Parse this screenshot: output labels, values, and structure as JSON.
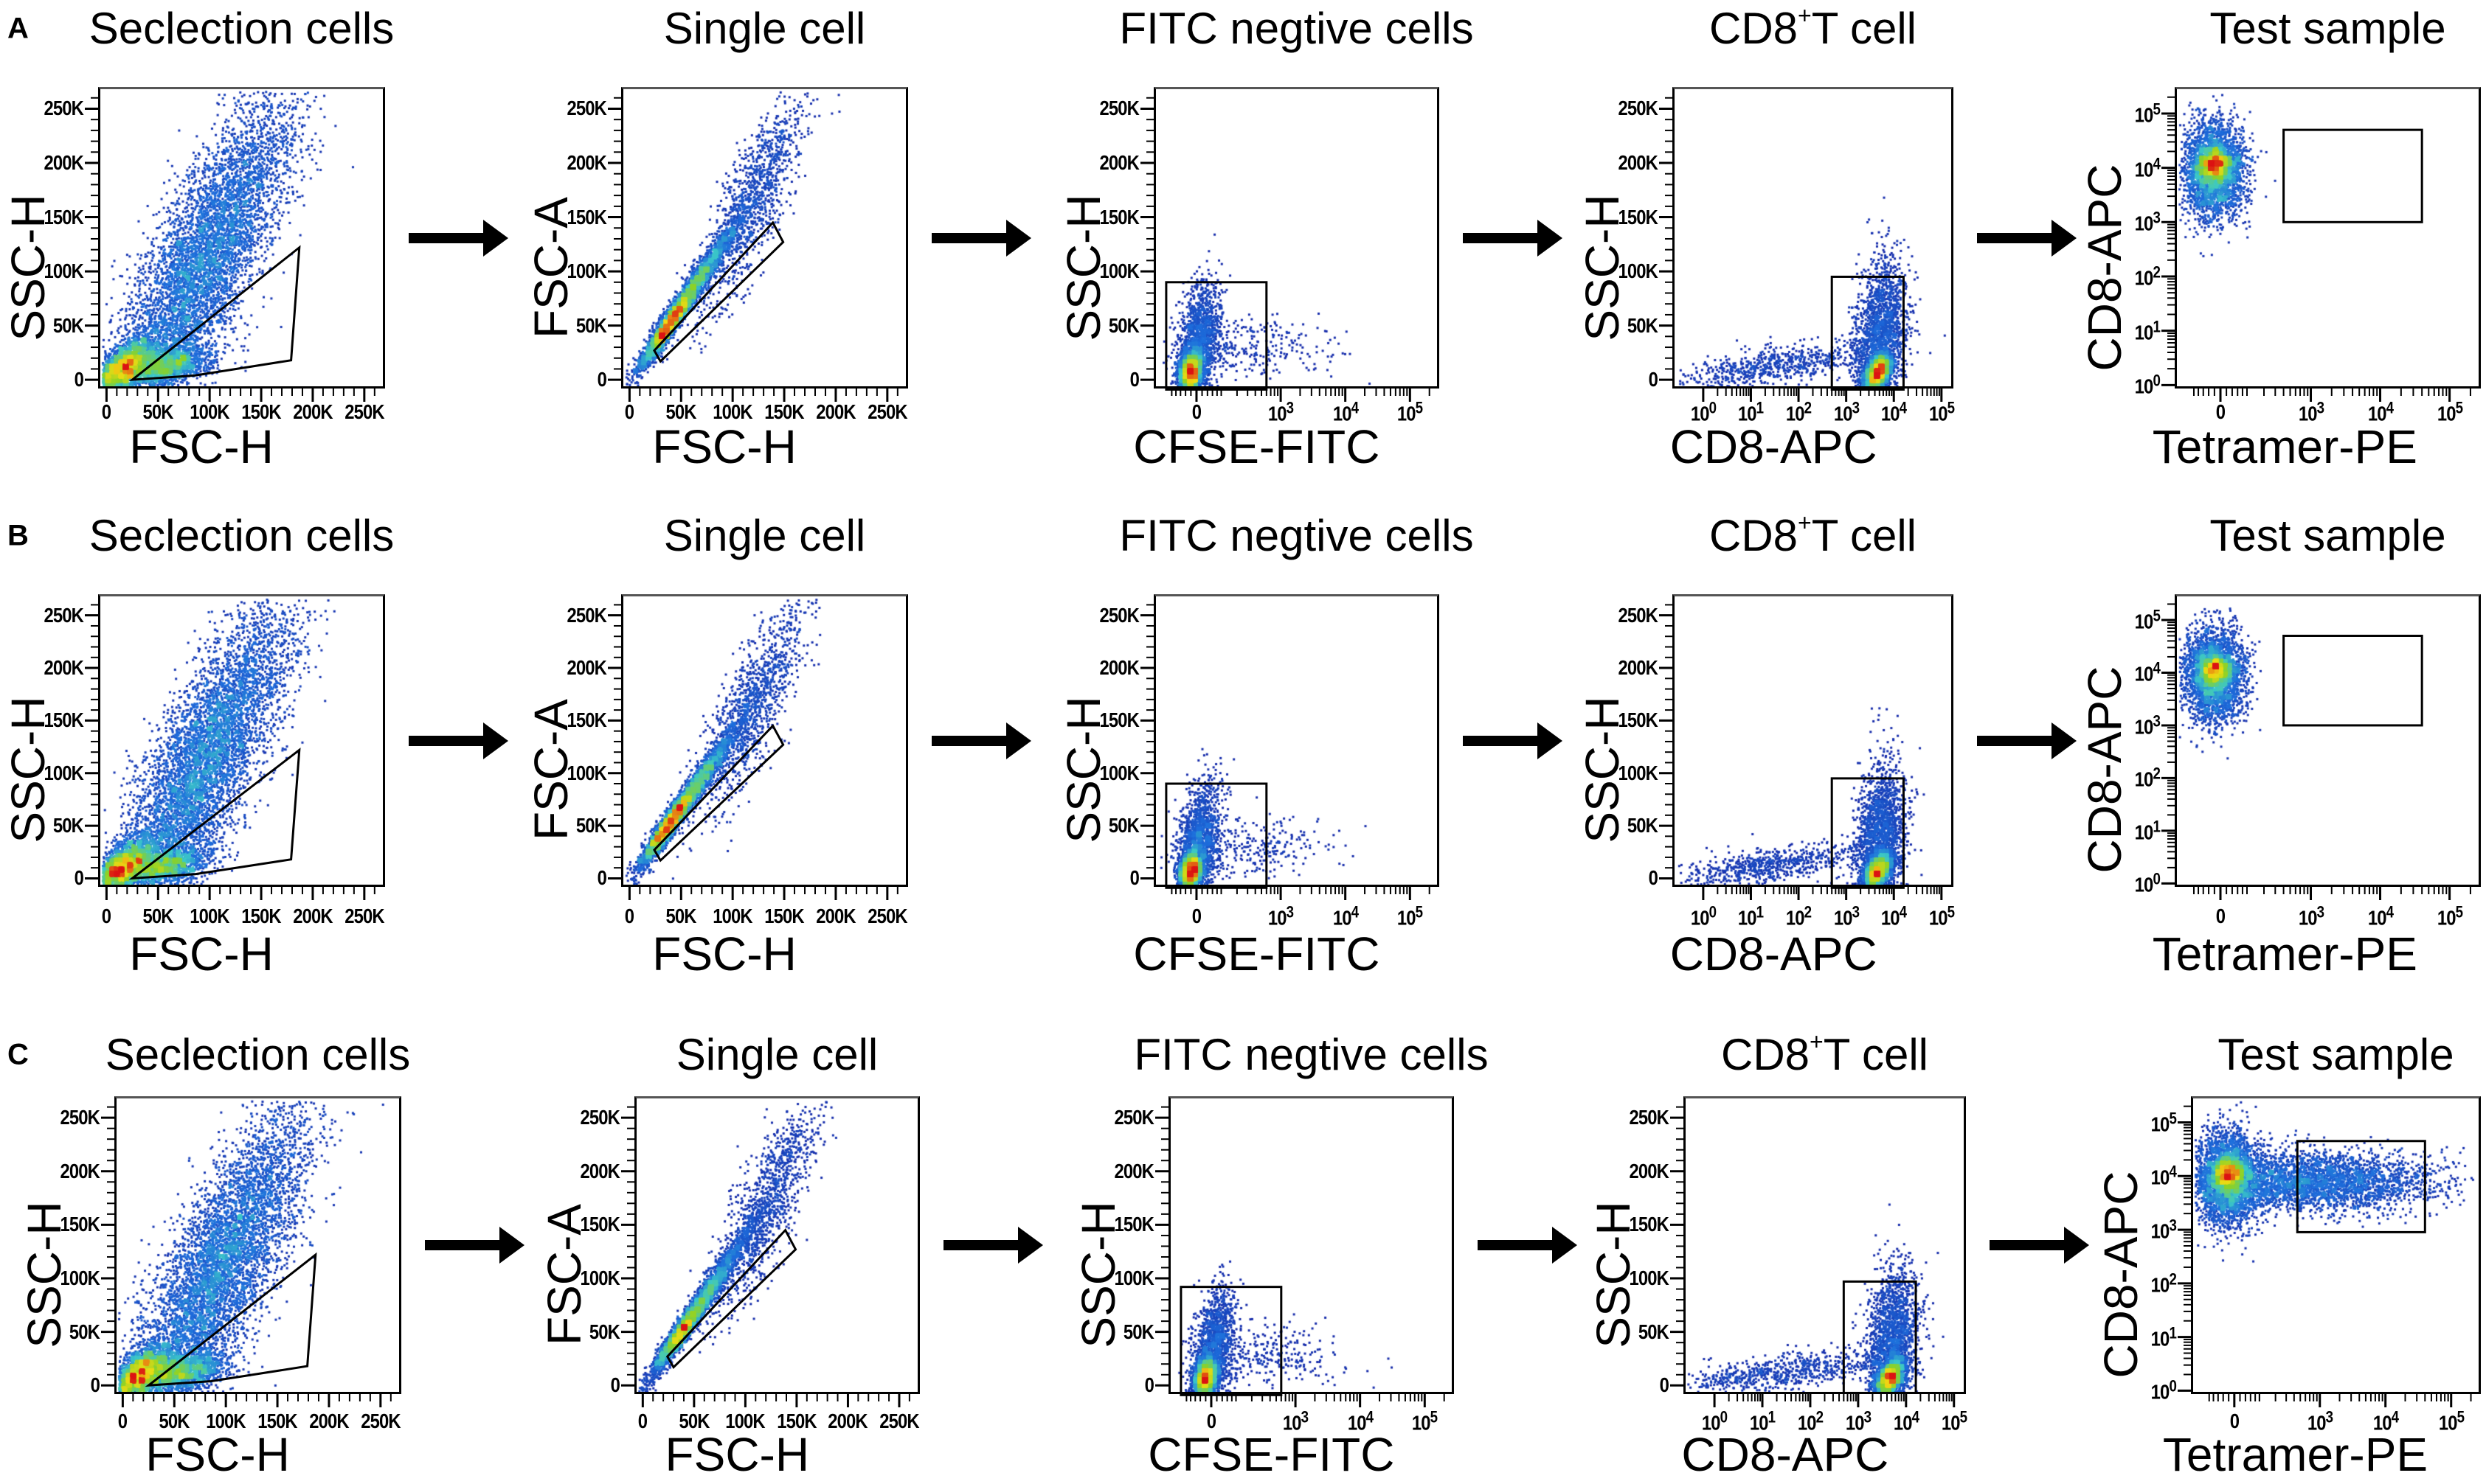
{
  "panels": [
    {
      "letter": "A"
    },
    {
      "letter": "B"
    },
    {
      "letter": "C"
    }
  ],
  "tick_sets": {
    "linear": [
      {
        "value": 0,
        "label": "0",
        "sup": ""
      },
      {
        "value": 50000,
        "label": "50K",
        "sup": ""
      },
      {
        "value": 100000,
        "label": "100K",
        "sup": ""
      },
      {
        "value": 150000,
        "label": "150K",
        "sup": ""
      },
      {
        "value": 200000,
        "label": "200K",
        "sup": ""
      },
      {
        "value": 250000,
        "label": "250K",
        "sup": ""
      }
    ],
    "biex": [
      {
        "value": 0,
        "label": "0",
        "sup": ""
      },
      {
        "value": 1000,
        "label": "10",
        "sup": "3"
      },
      {
        "value": 10000,
        "label": "10",
        "sup": "4"
      },
      {
        "value": 100000,
        "label": "10",
        "sup": "5"
      }
    ],
    "log": [
      {
        "value": 1,
        "label": "10",
        "sup": "0"
      },
      {
        "value": 10,
        "label": "10",
        "sup": "1"
      },
      {
        "value": 100,
        "label": "10",
        "sup": "2"
      },
      {
        "value": 1000,
        "label": "10",
        "sup": "3"
      },
      {
        "value": 10000,
        "label": "10",
        "sup": "4"
      },
      {
        "value": 100000,
        "label": "10",
        "sup": "5"
      }
    ]
  },
  "chart_data": [
    {
      "panel": "A",
      "type": "scatter",
      "title": "Seclection cells",
      "title_sup": "",
      "title_post": "",
      "xlabel": "FSC-H",
      "ylabel": "SSC-H",
      "xscale": "linear",
      "yscale": "linear",
      "xticks": "linear",
      "yticks": "linear",
      "xlim": [
        -6000,
        268000
      ],
      "ylim": [
        -6000,
        268000
      ],
      "gate": {
        "shape": "polygon",
        "points": [
          [
            25000,
            0
          ],
          [
            86000,
            4000
          ],
          [
            179000,
            18000
          ],
          [
            187000,
            122000
          ]
        ]
      }
    },
    {
      "panel": "A",
      "type": "scatter",
      "title": "Single cell",
      "title_sup": "",
      "title_post": "",
      "xlabel": "FSC-H",
      "ylabel": "FSC-A",
      "xscale": "linear",
      "yscale": "linear",
      "xticks": "linear",
      "yticks": "linear",
      "xlim": [
        -6000,
        268000
      ],
      "ylim": [
        -6000,
        268000
      ],
      "gate": {
        "shape": "polygon",
        "points": [
          [
            24000,
            27000
          ],
          [
            30000,
            17000
          ],
          [
            149000,
            127000
          ],
          [
            139000,
            145000
          ]
        ]
      }
    },
    {
      "panel": "A",
      "type": "scatter",
      "title": "FITC negtive cells",
      "title_sup": "",
      "title_post": "",
      "xlabel": "CFSE-FITC",
      "ylabel": "SSC-H",
      "xscale": "biexponential",
      "yscale": "linear",
      "xticks": "biex",
      "yticks": "linear",
      "xlim": [
        -200,
        262144
      ],
      "ylim": [
        -6000,
        268000
      ],
      "gate": {
        "shape": "rect",
        "x": [
          -130,
          600
        ],
        "y": [
          -9000,
          90000
        ]
      }
    },
    {
      "panel": "A",
      "type": "scatter",
      "title": "CD8",
      "title_sup": "+",
      "title_post": "T cell",
      "xlabel": "CD8-APC",
      "ylabel": "SSC-H",
      "xscale": "log",
      "yscale": "linear",
      "xticks": "log",
      "yticks": "linear",
      "xlim": [
        0.25,
        160000
      ],
      "ylim": [
        -6000,
        268000
      ],
      "gate": {
        "shape": "rect",
        "x": [
          500,
          16000
        ],
        "y": [
          -9000,
          95000
        ]
      }
    },
    {
      "panel": "A",
      "type": "scatter",
      "title": "Test sample",
      "title_sup": "",
      "title_post": "",
      "xlabel": "Tetramer-PE",
      "ylabel": "CD8-APC",
      "xscale": "biexponential",
      "yscale": "log",
      "xticks": "biex",
      "yticks": "log",
      "xlim": [
        -200,
        262144
      ],
      "ylim": [
        0.95,
        280000
      ],
      "gate": {
        "shape": "rect",
        "x": [
          400,
          40000
        ],
        "y": [
          1000,
          50000
        ]
      }
    },
    {
      "panel": "B",
      "type": "scatter",
      "title": "Seclection cells",
      "title_sup": "",
      "title_post": "",
      "xlabel": "FSC-H",
      "ylabel": "SSC-H",
      "xscale": "linear",
      "yscale": "linear",
      "xticks": "linear",
      "yticks": "linear",
      "xlim": [
        -6000,
        268000
      ],
      "ylim": [
        -6000,
        268000
      ],
      "gate": {
        "shape": "polygon",
        "points": [
          [
            25000,
            0
          ],
          [
            86000,
            4000
          ],
          [
            179000,
            18000
          ],
          [
            187000,
            122000
          ]
        ]
      }
    },
    {
      "panel": "B",
      "type": "scatter",
      "title": "Single cell",
      "title_sup": "",
      "title_post": "",
      "xlabel": "FSC-H",
      "ylabel": "FSC-A",
      "xscale": "linear",
      "yscale": "linear",
      "xticks": "linear",
      "yticks": "linear",
      "xlim": [
        -6000,
        268000
      ],
      "ylim": [
        -6000,
        268000
      ],
      "gate": {
        "shape": "polygon",
        "points": [
          [
            24000,
            27000
          ],
          [
            30000,
            17000
          ],
          [
            149000,
            127000
          ],
          [
            139000,
            145000
          ]
        ]
      }
    },
    {
      "panel": "B",
      "type": "scatter",
      "title": "FITC negtive cells",
      "title_sup": "",
      "title_post": "",
      "xlabel": "CFSE-FITC",
      "ylabel": "SSC-H",
      "xscale": "biexponential",
      "yscale": "linear",
      "xticks": "biex",
      "yticks": "linear",
      "xlim": [
        -200,
        262144
      ],
      "ylim": [
        -6000,
        268000
      ],
      "gate": {
        "shape": "rect",
        "x": [
          -130,
          600
        ],
        "y": [
          -9000,
          90000
        ]
      }
    },
    {
      "panel": "B",
      "type": "scatter",
      "title": "CD8",
      "title_sup": "+",
      "title_post": "T cell",
      "xlabel": "CD8-APC",
      "ylabel": "SSC-H",
      "xscale": "log",
      "yscale": "linear",
      "xticks": "log",
      "yticks": "linear",
      "xlim": [
        0.25,
        160000
      ],
      "ylim": [
        -6000,
        268000
      ],
      "gate": {
        "shape": "rect",
        "x": [
          500,
          16000
        ],
        "y": [
          -9000,
          95000
        ]
      }
    },
    {
      "panel": "B",
      "type": "scatter",
      "title": "Test sample",
      "title_sup": "",
      "title_post": "",
      "xlabel": "Tetramer-PE",
      "ylabel": "CD8-APC",
      "xscale": "biexponential",
      "yscale": "log",
      "xticks": "biex",
      "yticks": "log",
      "xlim": [
        -200,
        262144
      ],
      "ylim": [
        0.95,
        280000
      ],
      "gate": {
        "shape": "rect",
        "x": [
          400,
          40000
        ],
        "y": [
          1000,
          50000
        ]
      }
    },
    {
      "panel": "C",
      "type": "scatter",
      "title": "Seclection cells",
      "title_sup": "",
      "title_post": "",
      "xlabel": "FSC-H",
      "ylabel": "SSC-H",
      "xscale": "linear",
      "yscale": "linear",
      "xticks": "linear",
      "yticks": "linear",
      "xlim": [
        -6000,
        268000
      ],
      "ylim": [
        -6000,
        268000
      ],
      "gate": {
        "shape": "polygon",
        "points": [
          [
            25000,
            0
          ],
          [
            86000,
            4000
          ],
          [
            179000,
            18000
          ],
          [
            187000,
            122000
          ]
        ]
      }
    },
    {
      "panel": "C",
      "type": "scatter",
      "title": "Single cell",
      "title_sup": "",
      "title_post": "",
      "xlabel": "FSC-H",
      "ylabel": "FSC-A",
      "xscale": "linear",
      "yscale": "linear",
      "xticks": "linear",
      "yticks": "linear",
      "xlim": [
        -6000,
        268000
      ],
      "ylim": [
        -6000,
        268000
      ],
      "gate": {
        "shape": "polygon",
        "points": [
          [
            24000,
            27000
          ],
          [
            30000,
            17000
          ],
          [
            149000,
            127000
          ],
          [
            139000,
            145000
          ]
        ]
      }
    },
    {
      "panel": "C",
      "type": "scatter",
      "title": "FITC negtive cells",
      "title_sup": "",
      "title_post": "",
      "xlabel": "CFSE-FITC",
      "ylabel": "SSC-H",
      "xscale": "biexponential",
      "yscale": "linear",
      "xticks": "biex",
      "yticks": "linear",
      "xlim": [
        -200,
        262144
      ],
      "ylim": [
        -6000,
        268000
      ],
      "gate": {
        "shape": "rect",
        "x": [
          -130,
          600
        ],
        "y": [
          -9000,
          92000
        ]
      }
    },
    {
      "panel": "C",
      "type": "scatter",
      "title": "CD8",
      "title_sup": "+",
      "title_post": "T cell",
      "xlabel": "CD8-APC",
      "ylabel": "SSC-H",
      "xscale": "log",
      "yscale": "linear",
      "xticks": "log",
      "yticks": "linear",
      "xlim": [
        0.25,
        160000
      ],
      "ylim": [
        -6000,
        268000
      ],
      "gate": {
        "shape": "rect",
        "x": [
          500,
          16000
        ],
        "y": [
          -7000,
          97000
        ]
      }
    },
    {
      "panel": "C",
      "type": "scatter",
      "title": "Test sample",
      "title_sup": "",
      "title_post": "",
      "xlabel": "Tetramer-PE",
      "ylabel": "CD8-APC",
      "xscale": "biexponential",
      "yscale": "log",
      "xticks": "biex",
      "yticks": "log",
      "xlim": [
        -200,
        262144
      ],
      "ylim": [
        0.95,
        280000
      ],
      "gate": {
        "shape": "rect",
        "x": [
          450,
          40000
        ],
        "y": [
          900,
          45000
        ]
      }
    }
  ]
}
